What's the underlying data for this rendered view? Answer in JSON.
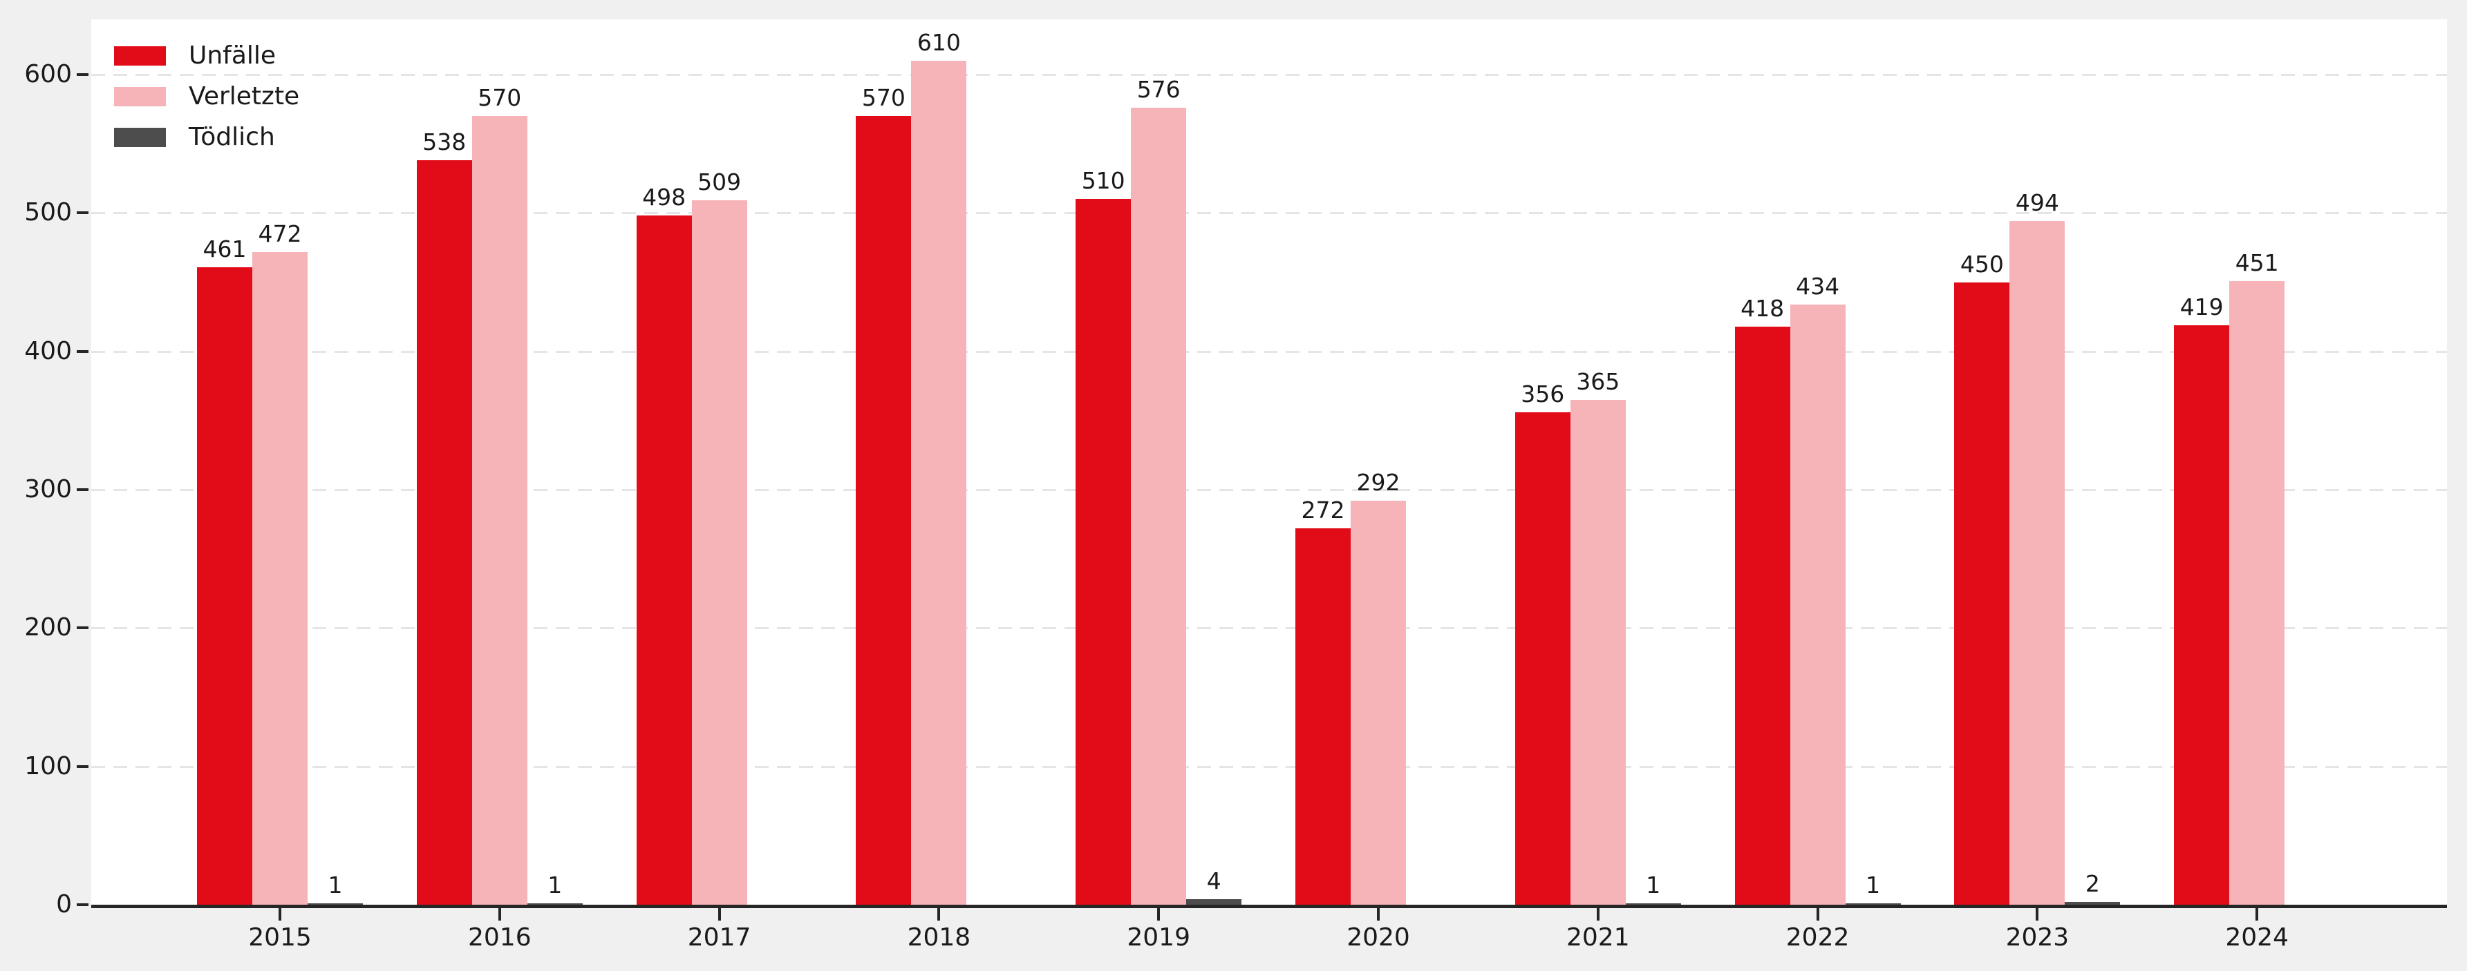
{
  "chart_data": {
    "type": "bar",
    "title": "",
    "xlabel": "",
    "ylabel": "",
    "categories": [
      "2015",
      "2016",
      "2017",
      "2018",
      "2019",
      "2020",
      "2021",
      "2022",
      "2023",
      "2024"
    ],
    "series": [
      {
        "name": "Unfälle",
        "color": "#e20b18",
        "values": [
          461,
          538,
          498,
          570,
          510,
          272,
          356,
          418,
          450,
          419
        ],
        "hide_zero_labels": false
      },
      {
        "name": "Verletzte",
        "color": "#f6b3b8",
        "values": [
          472,
          570,
          509,
          610,
          576,
          292,
          365,
          434,
          494,
          451
        ],
        "hide_zero_labels": false
      },
      {
        "name": "Tödlich",
        "color": "#4d4d4d",
        "values": [
          1,
          1,
          0,
          0,
          4,
          0,
          1,
          1,
          2,
          0
        ],
        "hide_zero_labels": true
      }
    ],
    "yticks": [
      0,
      100,
      200,
      300,
      400,
      500,
      600
    ],
    "ylim": [
      0,
      640
    ],
    "grid": "horizontal-dashed",
    "legend_position": "upper-left",
    "bar_value_labels": true
  },
  "colors": {
    "figure_bg": "#f0f0f0",
    "plot_bg": "#ffffff",
    "grid": "#e5e5e5",
    "axis": "#262626",
    "text": "#1a1a1a"
  }
}
